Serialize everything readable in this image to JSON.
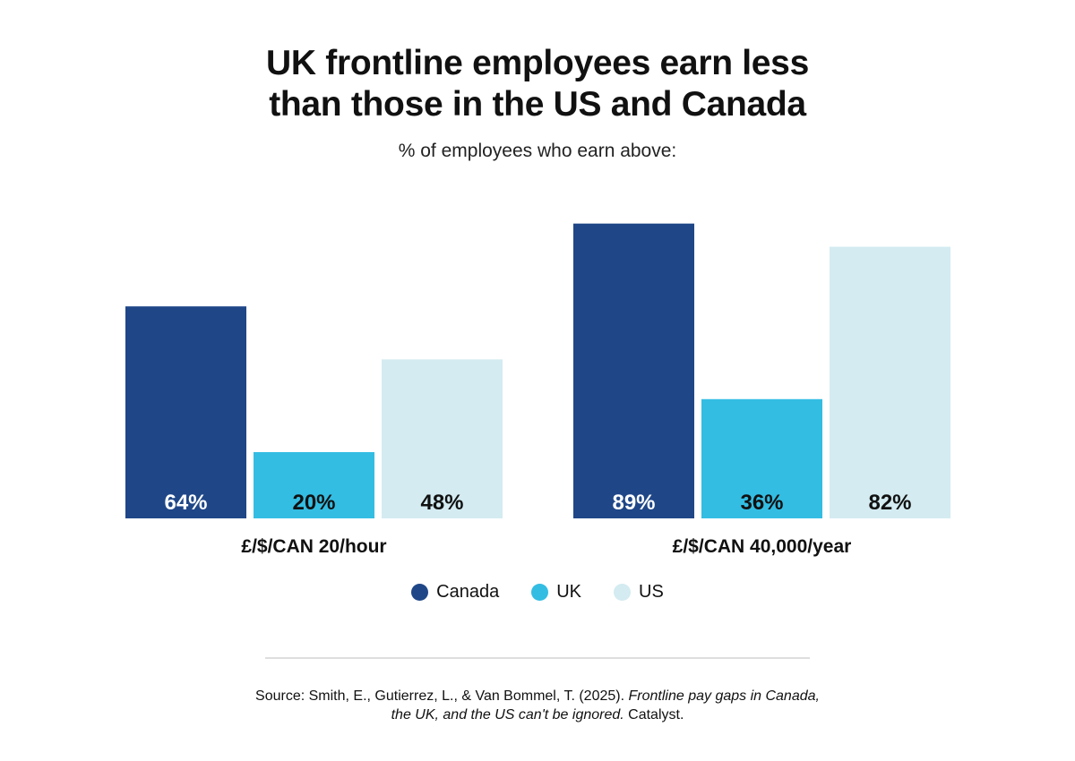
{
  "title_line1": "UK frontline employees earn less",
  "title_line2": "than those in the US and Canada",
  "subtitle": "% of employees who earn above:",
  "chart_data": {
    "type": "bar",
    "title": "UK frontline employees earn less than those in the US and Canada",
    "subtitle": "% of employees who earn above:",
    "categories": [
      "£/$/CAN 20/hour",
      "£/$/CAN 40,000/year"
    ],
    "series": [
      {
        "name": "Canada",
        "values": [
          64,
          89
        ],
        "labels": [
          "64%",
          "89%"
        ],
        "color": "#1f4788",
        "label_color": "#ffffff"
      },
      {
        "name": "UK",
        "values": [
          20,
          36
        ],
        "labels": [
          "20%",
          "36%"
        ],
        "color": "#33bde3",
        "label_color": "#111111"
      },
      {
        "name": "US",
        "values": [
          48,
          82
        ],
        "labels": [
          "48%",
          "82%"
        ],
        "color": "#d3ebf1",
        "label_color": "#111111"
      }
    ],
    "ylim": [
      0,
      100
    ],
    "grid": false,
    "legend_position": "bottom-center"
  },
  "source": {
    "prefix": "Source: Smith, E., Gutierrez, L., & Van Bommel, T. (2025). ",
    "italic_line1": "Frontline pay gaps in Canada,",
    "italic_line2": "the UK, and the US can't be ignored.",
    "suffix": " Catalyst."
  }
}
